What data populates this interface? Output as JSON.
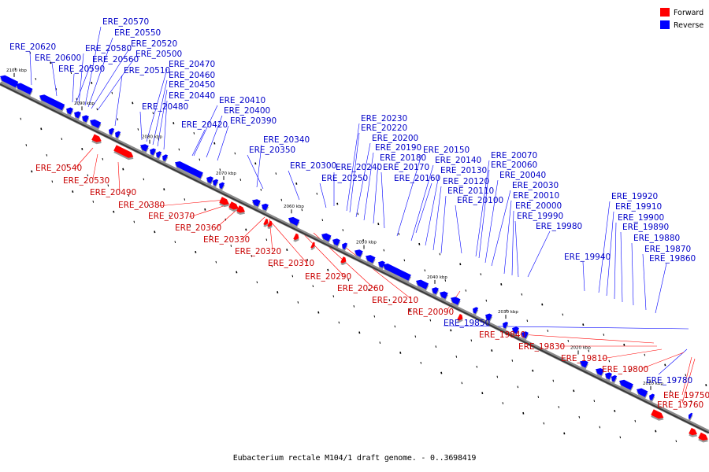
{
  "caption": "Eubacterium rectale M104/1 draft genome. - 0..3698419",
  "legend": [
    {
      "label": "Forward",
      "color": "#ff0000"
    },
    {
      "label": "Reverse",
      "color": "#0000ff"
    }
  ],
  "axis_ticks": [
    "2100 kbp",
    "2090 kbp",
    "2080 kbp",
    "2070 kbp",
    "2060 kbp",
    "2050 kbp",
    "2040 kbp",
    "2030 kbp",
    "2020 kbp",
    "2010 kbp"
  ],
  "reverse_genes": [
    "ERE_20570",
    "ERE_20550",
    "ERE_20520",
    "ERE_20500",
    "ERE_20620",
    "ERE_20580",
    "ERE_20600",
    "ERE_20560",
    "ERE_20590",
    "ERE_20510",
    "ERE_20470",
    "ERE_20460",
    "ERE_20450",
    "ERE_20440",
    "ERE_20480",
    "ERE_20410",
    "ERE_20400",
    "ERE_20420",
    "ERE_20390",
    "ERE_20340",
    "ERE_20350",
    "ERE_20230",
    "ERE_20220",
    "ERE_20200",
    "ERE_20190",
    "ERE_20180",
    "ERE_20170",
    "ERE_20160",
    "ERE_20150",
    "ERE_20140",
    "ERE_20130",
    "ERE_20120",
    "ERE_20110",
    "ERE_20100",
    "ERE_20300",
    "ERE_20240",
    "ERE_20250",
    "ERE_20070",
    "ERE_20060",
    "ERE_20040",
    "ERE_20030",
    "ERE_20010",
    "ERE_20000",
    "ERE_19990",
    "ERE_19980",
    "ERE_19920",
    "ERE_19910",
    "ERE_19900",
    "ERE_19890",
    "ERE_19880",
    "ERE_19870",
    "ERE_19860",
    "ERE_19940",
    "ERE_19850",
    "ERE_19780"
  ],
  "forward_genes": [
    "ERE_20540",
    "ERE_20530",
    "ERE_20490",
    "ERE_20380",
    "ERE_20370",
    "ERE_20360",
    "ERE_20330",
    "ERE_20320",
    "ERE_20310",
    "ERE_20290",
    "ERE_20260",
    "ERE_20210",
    "ERE_20090",
    "ERE_19840",
    "ERE_19830",
    "ERE_19810",
    "ERE_19800",
    "ERE_19750",
    "ERE_19760"
  ]
}
